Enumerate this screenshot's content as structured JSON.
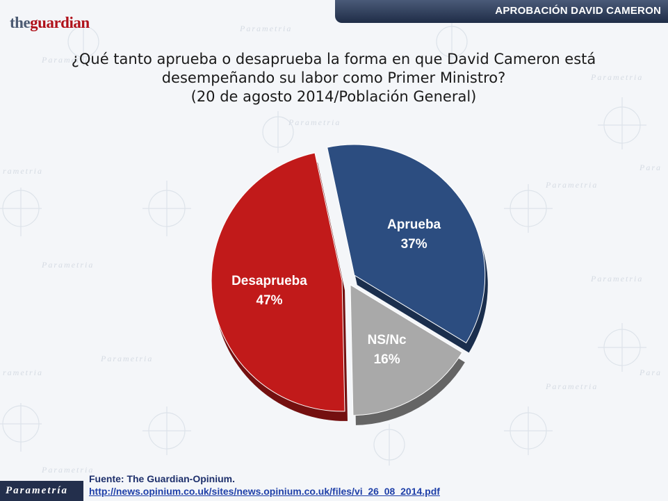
{
  "header": {
    "title": "APROBACIÓN DAVID CAMERON",
    "logo_the": "the",
    "logo_guardian": "guardian"
  },
  "question": {
    "line1": "¿Qué tanto aprueba o desaprueba la forma en que David Cameron está",
    "line2": "desempeñando su labor como Primer Ministro?",
    "line3": "(20 de agosto 2014/Población General)"
  },
  "chart_data": {
    "type": "pie",
    "title": "",
    "slices": [
      {
        "label": "Aprueba",
        "value": 37,
        "display": "37%",
        "color": "#2c4d80"
      },
      {
        "label": "NS/Nc",
        "value": 16,
        "display": "16%",
        "color": "#a9a9a9"
      },
      {
        "label": "Desaprueba",
        "value": 47,
        "display": "47%",
        "color": "#c11a1a"
      }
    ]
  },
  "footer": {
    "source": "Fuente: The Guardian-Opinium.",
    "link": "http://news.opinium.co.uk/sites/news.opinium.co.uk/files/vi_26_08_2014.pdf",
    "brand": "Parametría"
  }
}
